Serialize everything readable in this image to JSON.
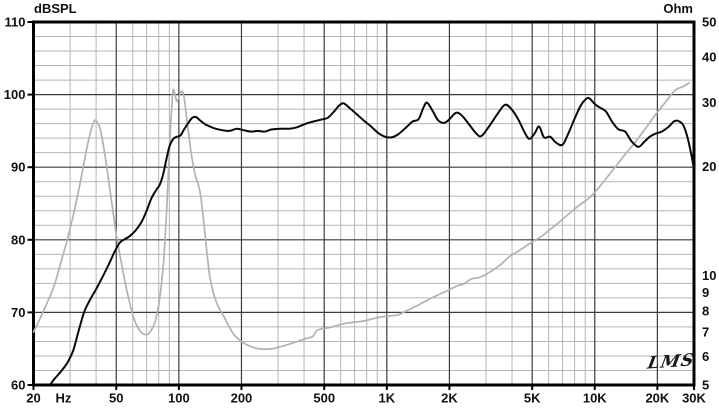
{
  "labels": {
    "y_left_unit": "dBSPL",
    "y_right_unit": "Ohm",
    "logo": "LMS",
    "hz_unit": "Hz"
  },
  "colors": {
    "background": "#ffffff",
    "grid_minor": "#b5b5b5",
    "grid_major": "#3c3c3c",
    "border": "#000000",
    "text": "#111111",
    "spl_curve": "#0a0a0a",
    "impedance_curve": "#b2b2b2"
  },
  "chart_data": {
    "type": "line",
    "title": "",
    "x_axis": {
      "scale": "log",
      "min": 20,
      "max": 30000,
      "unit_label": "Hz",
      "labeled_ticks": [
        {
          "f": 20,
          "label": "20"
        },
        {
          "f": 50,
          "label": "50"
        },
        {
          "f": 100,
          "label": "100"
        },
        {
          "f": 200,
          "label": "200"
        },
        {
          "f": 500,
          "label": "500"
        },
        {
          "f": 1000,
          "label": "1K"
        },
        {
          "f": 2000,
          "label": "2K"
        },
        {
          "f": 5000,
          "label": "5K"
        },
        {
          "f": 10000,
          "label": "10K"
        },
        {
          "f": 20000,
          "label": "20K"
        },
        {
          "f": 30000,
          "label": "30K"
        }
      ],
      "major_grid": [
        50,
        100,
        200,
        500,
        1000,
        2000,
        5000,
        10000,
        20000
      ]
    },
    "y_left_axis": {
      "label": "dBSPL",
      "scale": "linear",
      "min": 60,
      "max": 110,
      "major_ticks": [
        110,
        100,
        90,
        80,
        70,
        60
      ],
      "minor_step": 2
    },
    "y_right_axis": {
      "label": "Ohm",
      "scale": "log",
      "min": 5,
      "max": 50,
      "ticks": [
        50,
        40,
        30,
        20,
        10,
        9,
        8,
        7,
        6,
        5
      ]
    },
    "grid": true,
    "legend": "none",
    "series": [
      {
        "name": "impedance-curve",
        "axis": "right",
        "units": "Ohm",
        "points": [
          [
            20,
            7.0
          ],
          [
            21,
            7.4
          ],
          [
            23,
            8.3
          ],
          [
            25,
            9.3
          ],
          [
            27,
            10.8
          ],
          [
            29,
            12.5
          ],
          [
            31,
            14.6
          ],
          [
            33,
            17.2
          ],
          [
            35,
            20.5
          ],
          [
            37,
            24.0
          ],
          [
            39,
            26.5
          ],
          [
            40,
            26.7
          ],
          [
            41.5,
            25.8
          ],
          [
            43,
            23.5
          ],
          [
            45,
            20.0
          ],
          [
            47.5,
            16.0
          ],
          [
            50,
            13.0
          ],
          [
            53,
            10.8
          ],
          [
            56,
            9.2
          ],
          [
            59,
            8.1
          ],
          [
            62,
            7.4
          ],
          [
            65,
            7.05
          ],
          [
            68,
            6.9
          ],
          [
            71,
            6.9
          ],
          [
            74,
            7.1
          ],
          [
            77,
            7.5
          ],
          [
            80,
            8.3
          ],
          [
            83,
            9.8
          ],
          [
            85,
            11.5
          ],
          [
            87,
            14.5
          ],
          [
            89,
            19.0
          ],
          [
            91,
            25.0
          ],
          [
            93,
            31.0
          ],
          [
            94,
            32.6
          ],
          [
            95.5,
            31.8
          ],
          [
            97,
            30.6
          ],
          [
            98.5,
            30.3
          ],
          [
            100,
            31.0
          ],
          [
            102,
            32.0
          ],
          [
            104,
            32.2
          ],
          [
            106,
            31.0
          ],
          [
            108,
            28.5
          ],
          [
            111,
            25.0
          ],
          [
            115,
            21.5
          ],
          [
            120,
            18.9
          ],
          [
            126,
            17.2
          ],
          [
            131,
            14.5
          ],
          [
            136,
            11.8
          ],
          [
            141,
            9.9
          ],
          [
            147,
            8.9
          ],
          [
            155,
            8.2
          ],
          [
            163,
            7.8
          ],
          [
            172,
            7.35
          ],
          [
            182,
            6.95
          ],
          [
            193,
            6.7
          ],
          [
            207,
            6.5
          ],
          [
            222,
            6.38
          ],
          [
            240,
            6.3
          ],
          [
            262,
            6.28
          ],
          [
            285,
            6.3
          ],
          [
            310,
            6.38
          ],
          [
            340,
            6.48
          ],
          [
            375,
            6.6
          ],
          [
            410,
            6.72
          ],
          [
            440,
            6.8
          ],
          [
            460,
            7.05
          ],
          [
            490,
            7.15
          ],
          [
            530,
            7.2
          ],
          [
            580,
            7.3
          ],
          [
            640,
            7.4
          ],
          [
            700,
            7.45
          ],
          [
            770,
            7.5
          ],
          [
            850,
            7.6
          ],
          [
            940,
            7.7
          ],
          [
            1030,
            7.75
          ],
          [
            1130,
            7.8
          ],
          [
            1240,
            8.0
          ],
          [
            1360,
            8.2
          ],
          [
            1500,
            8.45
          ],
          [
            1620,
            8.65
          ],
          [
            1800,
            8.9
          ],
          [
            2000,
            9.15
          ],
          [
            2200,
            9.4
          ],
          [
            2350,
            9.5
          ],
          [
            2550,
            9.8
          ],
          [
            2800,
            9.9
          ],
          [
            3100,
            10.2
          ],
          [
            3500,
            10.7
          ],
          [
            3900,
            11.3
          ],
          [
            4400,
            11.8
          ],
          [
            4900,
            12.3
          ],
          [
            5500,
            12.8
          ],
          [
            6100,
            13.4
          ],
          [
            6800,
            14.1
          ],
          [
            7600,
            14.9
          ],
          [
            8500,
            15.7
          ],
          [
            9300,
            16.3
          ],
          [
            10300,
            17.3
          ],
          [
            11400,
            18.6
          ],
          [
            12600,
            20.0
          ],
          [
            14000,
            21.6
          ],
          [
            15700,
            23.4
          ],
          [
            17500,
            25.4
          ],
          [
            19600,
            27.8
          ],
          [
            21800,
            30.0
          ],
          [
            24300,
            32.4
          ],
          [
            26500,
            33.2
          ],
          [
            28500,
            34.0
          ]
        ]
      },
      {
        "name": "spl-curve",
        "axis": "left",
        "units": "dBSPL",
        "points": [
          [
            24,
            60
          ],
          [
            25,
            60.7
          ],
          [
            27,
            61.8
          ],
          [
            29,
            63.0
          ],
          [
            31,
            64.7
          ],
          [
            33,
            67.5
          ],
          [
            35,
            70.0
          ],
          [
            37,
            71.5
          ],
          [
            40,
            73.2
          ],
          [
            43,
            74.9
          ],
          [
            46,
            76.6
          ],
          [
            49,
            78.3
          ],
          [
            52,
            79.6
          ],
          [
            55,
            80.1
          ],
          [
            58,
            80.5
          ],
          [
            62,
            81.3
          ],
          [
            66,
            82.4
          ],
          [
            70,
            84.0
          ],
          [
            74,
            85.8
          ],
          [
            78,
            86.9
          ],
          [
            81,
            87.6
          ],
          [
            84,
            89.0
          ],
          [
            87,
            91.0
          ],
          [
            90,
            92.8
          ],
          [
            94,
            93.9
          ],
          [
            98,
            94.2
          ],
          [
            102,
            94.4
          ],
          [
            106,
            95.2
          ],
          [
            111,
            96.1
          ],
          [
            116,
            96.8
          ],
          [
            121,
            96.9
          ],
          [
            127,
            96.4
          ],
          [
            134,
            95.9
          ],
          [
            141,
            95.6
          ],
          [
            150,
            95.3
          ],
          [
            162,
            95.1
          ],
          [
            175,
            95.0
          ],
          [
            190,
            95.3
          ],
          [
            205,
            95.1
          ],
          [
            222,
            94.9
          ],
          [
            240,
            95.0
          ],
          [
            258,
            94.9
          ],
          [
            280,
            95.2
          ],
          [
            310,
            95.3
          ],
          [
            340,
            95.3
          ],
          [
            370,
            95.5
          ],
          [
            400,
            95.9
          ],
          [
            430,
            96.2
          ],
          [
            460,
            96.4
          ],
          [
            490,
            96.6
          ],
          [
            520,
            96.8
          ],
          [
            555,
            97.6
          ],
          [
            590,
            98.5
          ],
          [
            620,
            98.8
          ],
          [
            660,
            98.2
          ],
          [
            710,
            97.4
          ],
          [
            770,
            96.5
          ],
          [
            840,
            95.6
          ],
          [
            910,
            94.7
          ],
          [
            980,
            94.2
          ],
          [
            1050,
            94.1
          ],
          [
            1130,
            94.5
          ],
          [
            1230,
            95.4
          ],
          [
            1330,
            96.3
          ],
          [
            1420,
            96.6
          ],
          [
            1500,
            98.2
          ],
          [
            1560,
            98.9
          ],
          [
            1650,
            97.9
          ],
          [
            1760,
            96.5
          ],
          [
            1880,
            96.1
          ],
          [
            2000,
            96.6
          ],
          [
            2150,
            97.5
          ],
          [
            2300,
            97.1
          ],
          [
            2500,
            95.8
          ],
          [
            2700,
            94.6
          ],
          [
            2850,
            94.3
          ],
          [
            3100,
            95.6
          ],
          [
            3400,
            97.3
          ],
          [
            3700,
            98.6
          ],
          [
            4000,
            97.9
          ],
          [
            4300,
            96.5
          ],
          [
            4600,
            94.8
          ],
          [
            4850,
            93.9
          ],
          [
            5150,
            94.7
          ],
          [
            5400,
            95.6
          ],
          [
            5700,
            94.1
          ],
          [
            6100,
            94.2
          ],
          [
            6500,
            93.4
          ],
          [
            7000,
            93.1
          ],
          [
            7500,
            94.8
          ],
          [
            8000,
            96.7
          ],
          [
            8600,
            98.6
          ],
          [
            9200,
            99.5
          ],
          [
            9500,
            99.4
          ],
          [
            10000,
            98.7
          ],
          [
            10600,
            98.2
          ],
          [
            11300,
            97.7
          ],
          [
            12100,
            96.3
          ],
          [
            13000,
            95.2
          ],
          [
            14000,
            94.9
          ],
          [
            15000,
            93.6
          ],
          [
            16200,
            92.8
          ],
          [
            17300,
            93.5
          ],
          [
            18400,
            94.2
          ],
          [
            19500,
            94.6
          ],
          [
            21000,
            94.9
          ],
          [
            22500,
            95.5
          ],
          [
            24000,
            96.3
          ],
          [
            25000,
            96.4
          ],
          [
            26500,
            95.9
          ],
          [
            27800,
            94.3
          ],
          [
            29000,
            92.0
          ],
          [
            29800,
            90.2
          ]
        ]
      }
    ]
  }
}
